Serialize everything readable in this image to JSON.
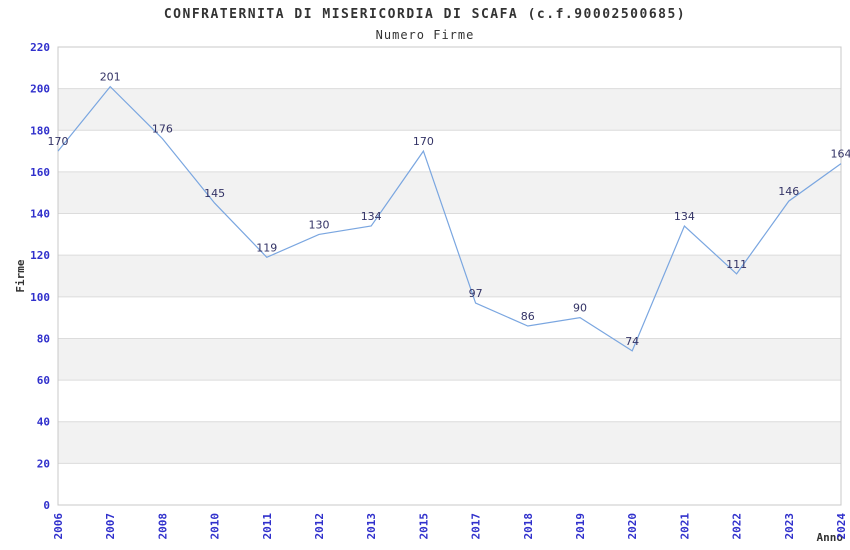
{
  "title": "CONFRATERNITA DI MISERICORDIA DI SCAFA (c.f.90002500685)",
  "subtitle": "Numero Firme",
  "chart_data": {
    "type": "line",
    "title": "CONFRATERNITA DI MISERICORDIA DI SCAFA (c.f.90002500685)",
    "subtitle": "Numero Firme",
    "xlabel": "Anno",
    "ylabel": "Firme",
    "categories": [
      "2006",
      "2007",
      "2008",
      "2010",
      "2011",
      "2012",
      "2013",
      "2015",
      "2017",
      "2018",
      "2019",
      "2020",
      "2021",
      "2022",
      "2023",
      "2024"
    ],
    "values": [
      170,
      201,
      176,
      145,
      119,
      130,
      134,
      170,
      97,
      86,
      90,
      74,
      134,
      111,
      146,
      164
    ],
    "series_name": "Numero Firme",
    "ylim": [
      0,
      220
    ],
    "ytick_step": 20,
    "yticks": [
      0,
      20,
      40,
      60,
      80,
      100,
      120,
      140,
      160,
      180,
      200,
      220
    ],
    "grid": "horizontal-bands",
    "legend": "none",
    "data_labels_visible": true,
    "colors": {
      "line": "#7aa6e0",
      "tick_label": "#3030cc",
      "data_label": "#333366",
      "band_gray": "#f2f2f2",
      "grid_line": "#dcdcdc",
      "plot_border": "#c8c8c8",
      "text_dark": "#333333",
      "background": "#ffffff"
    }
  }
}
